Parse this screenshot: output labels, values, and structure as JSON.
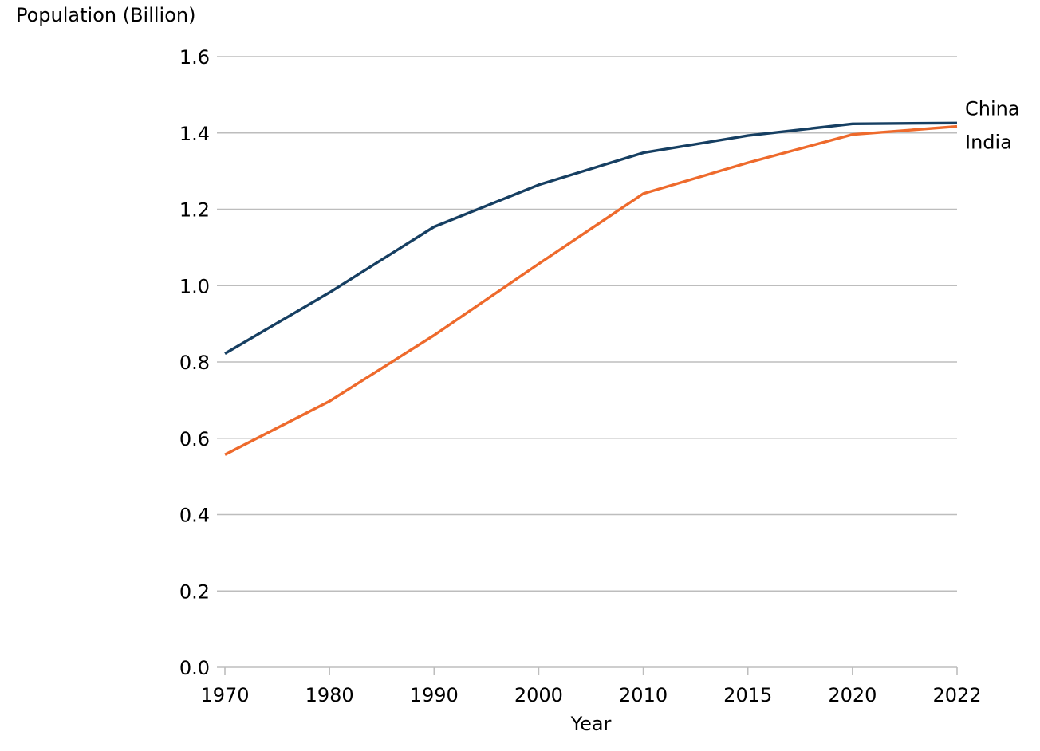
{
  "chart_data": {
    "type": "line",
    "title": "",
    "xlabel": "Year",
    "ylabel": "Population (Billion)",
    "x": [
      1970,
      1980,
      1990,
      2000,
      2010,
      2015,
      2020,
      2022
    ],
    "x_tick_labels": [
      "1970",
      "1980",
      "1990",
      "2000",
      "2010",
      "2015",
      "2020",
      "2022"
    ],
    "x_axis_spacing": "categorical (equal spacing)",
    "ylim": [
      0,
      1.6
    ],
    "y_ticks": [
      0.0,
      0.2,
      0.4,
      0.6,
      0.8,
      1.0,
      1.2,
      1.4,
      1.6
    ],
    "y_tick_labels": [
      "0.0",
      "0.2",
      "0.4",
      "0.6",
      "0.8",
      "1.0",
      "1.2",
      "1.4",
      "1.6"
    ],
    "grid": "horizontal",
    "legend": "direct labels at right end of lines",
    "series": [
      {
        "name": "China",
        "color": "#163f62",
        "values": [
          0.822,
          0.982,
          1.154,
          1.264,
          1.348,
          1.393,
          1.424,
          1.426
        ]
      },
      {
        "name": "India",
        "color": "#ee6a2c",
        "values": [
          0.557,
          0.697,
          0.87,
          1.057,
          1.241,
          1.322,
          1.396,
          1.417
        ]
      }
    ]
  }
}
